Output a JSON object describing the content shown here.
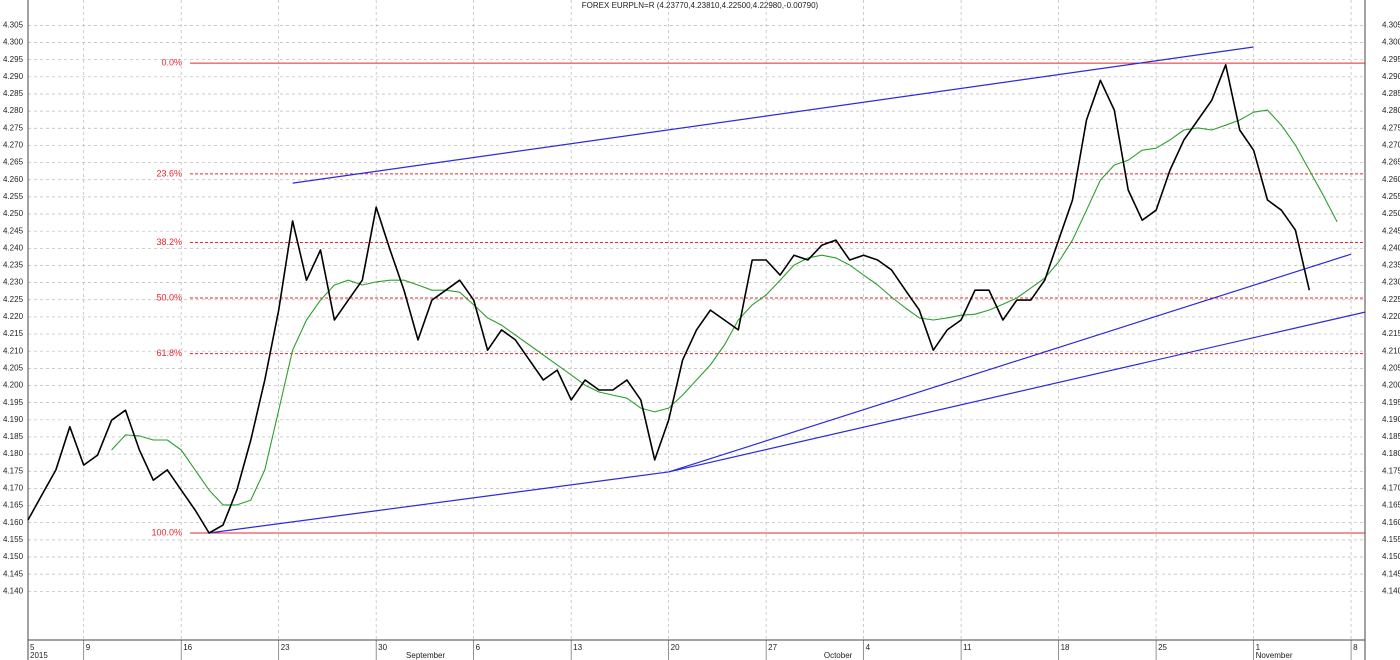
{
  "chart_data": {
    "type": "line",
    "title": "FOREX EURPLN=R (4.23770,4.23810,4.22500,4.22980,-0.00790)",
    "x": [
      "2015-08-05",
      "2015-08-06",
      "2015-08-07",
      "2015-08-08",
      "2015-08-09",
      "2015-08-10",
      "2015-08-11",
      "2015-08-12",
      "2015-08-13",
      "2015-08-14",
      "2015-08-15",
      "2015-08-16",
      "2015-08-17",
      "2015-08-18",
      "2015-08-19",
      "2015-08-20",
      "2015-08-21",
      "2015-08-22",
      "2015-08-23",
      "2015-08-24",
      "2015-08-25",
      "2015-08-26",
      "2015-08-27",
      "2015-08-28",
      "2015-08-29",
      "2015-08-30",
      "2015-08-31",
      "2015-09-01",
      "2015-09-02",
      "2015-09-03",
      "2015-09-04",
      "2015-09-05",
      "2015-09-06",
      "2015-09-07",
      "2015-09-08",
      "2015-09-09",
      "2015-09-10",
      "2015-09-11",
      "2015-09-12",
      "2015-09-13",
      "2015-09-14",
      "2015-09-15",
      "2015-09-16",
      "2015-09-17",
      "2015-09-18",
      "2015-09-19",
      "2015-09-20",
      "2015-09-21",
      "2015-09-22",
      "2015-09-23",
      "2015-09-24",
      "2015-09-25",
      "2015-09-26",
      "2015-09-27",
      "2015-09-28",
      "2015-09-29",
      "2015-09-30",
      "2015-10-01",
      "2015-10-02",
      "2015-10-03",
      "2015-10-04",
      "2015-10-05",
      "2015-10-06",
      "2015-10-07",
      "2015-10-08",
      "2015-10-09",
      "2015-10-10",
      "2015-10-11",
      "2015-10-12",
      "2015-10-13",
      "2015-10-14",
      "2015-10-15",
      "2015-10-16",
      "2015-10-17",
      "2015-10-18",
      "2015-10-19",
      "2015-10-20",
      "2015-10-21",
      "2015-10-22",
      "2015-10-23",
      "2015-10-24",
      "2015-10-25",
      "2015-10-26",
      "2015-10-27",
      "2015-10-28",
      "2015-10-29",
      "2015-10-30",
      "2015-10-31",
      "2015-11-01",
      "2015-11-02",
      "2015-11-03",
      "2015-11-04",
      "2015-11-05",
      "2015-11-06",
      "2015-11-07"
    ],
    "series": [
      {
        "color": "#000000",
        "values": [
          4.1608,
          4.1681,
          4.1754,
          4.188,
          4.1768,
          4.1797,
          4.1899,
          4.1928,
          4.1812,
          4.1724,
          4.1754,
          4.1695,
          4.1637,
          4.157,
          4.1593,
          4.1695,
          4.1841,
          4.2016,
          4.222,
          4.248,
          4.2307,
          4.2395,
          4.2191,
          4.2249,
          4.2307,
          4.252,
          4.2395,
          4.2278,
          4.2133,
          4.2249,
          4.2278,
          4.2307,
          4.2249,
          4.2103,
          4.2162,
          4.2133,
          4.2074,
          4.2016,
          4.2045,
          4.1958,
          4.2016,
          4.1987,
          4.1987,
          4.2016,
          4.1958,
          4.1783,
          4.1899,
          4.2074,
          4.2162,
          4.222,
          4.2191,
          4.2162,
          4.2366,
          4.2366,
          4.2322,
          4.238,
          4.2366,
          4.2409,
          4.2424,
          4.2366,
          4.238,
          4.2366,
          4.2337,
          4.2278,
          4.222,
          4.2103,
          4.2162,
          4.2191,
          4.2278,
          4.2278,
          4.2191,
          4.2249,
          4.2249,
          4.2307,
          4.2424,
          4.2541,
          4.2774,
          4.289,
          4.2803,
          4.257,
          4.2482,
          4.2511,
          4.2628,
          4.2716,
          4.2774,
          4.2832,
          4.2935,
          4.2745,
          4.2686,
          4.2541,
          4.2511,
          4.2453,
          4.2278,
          null,
          null
        ]
      },
      {
        "color": "#2ca02c",
        "values": [
          null,
          null,
          null,
          null,
          null,
          null,
          4.1812,
          4.1856,
          4.1853,
          4.1841,
          4.1841,
          4.1812,
          4.1754,
          4.1695,
          4.1652,
          4.1652,
          4.1666,
          4.1754,
          4.1928,
          4.2103,
          4.2191,
          4.2249,
          4.2293,
          4.2307,
          4.2293,
          4.2302,
          4.2307,
          4.2307,
          4.2293,
          4.2278,
          4.2278,
          4.2272,
          4.2235,
          4.2197,
          4.2176,
          4.2147,
          4.2118,
          4.2089,
          4.206,
          4.2031,
          4.2001,
          4.1981,
          4.1972,
          4.1963,
          4.1934,
          4.1923,
          4.1934,
          4.1972,
          4.2016,
          4.206,
          4.2118,
          4.2191,
          4.2235,
          4.2264,
          4.2307,
          4.2351,
          4.2372,
          4.238,
          4.2372,
          4.2351,
          4.2322,
          4.2293,
          4.2258,
          4.2226,
          4.2197,
          4.2191,
          4.2197,
          4.2205,
          4.2208,
          4.222,
          4.2237,
          4.2255,
          4.2284,
          4.2313,
          4.236,
          4.2424,
          4.2511,
          4.2599,
          4.2643,
          4.2657,
          4.2686,
          4.2692,
          4.2716,
          4.2745,
          4.2751,
          4.2745,
          4.2759,
          4.2774,
          4.2797,
          4.2803,
          4.2759,
          4.2701,
          4.2628,
          4.2555,
          4.2477
        ]
      }
    ],
    "trendlines": {
      "color": "#2b2bdc",
      "lines": [
        {
          "x": [
            "2015-08-24",
            "2015-11-01"
          ],
          "values": [
            4.259,
            4.2987
          ]
        },
        {
          "x": [
            "2015-08-18",
            "2015-09-20"
          ],
          "values": [
            4.157,
            4.1748
          ]
        },
        {
          "x": [
            "2015-09-20",
            "2015-11-08"
          ],
          "values": [
            4.1748,
            4.2383
          ]
        },
        {
          "x": [
            "2015-09-20",
            "2015-11-09"
          ],
          "values": [
            4.1748,
            4.2214
          ]
        }
      ]
    },
    "levels": {
      "color": "#e8262d",
      "items": [
        {
          "name": "0.0%",
          "value": 4.294,
          "style": "solid"
        },
        {
          "name": "23.6%",
          "value": 4.2617,
          "style": "dashed"
        },
        {
          "name": "38.2%",
          "value": 4.2417,
          "style": "dashed"
        },
        {
          "name": "50.0%",
          "value": 4.2255,
          "style": "dashed"
        },
        {
          "name": "61.8%",
          "value": 4.2093,
          "style": "dashed"
        },
        {
          "name": "100.0%",
          "value": 4.157,
          "style": "solid"
        }
      ]
    },
    "xlim": [
      "2015-08-05",
      "2015-11-09"
    ],
    "xticks": [
      {
        "value": "2015-08-05",
        "label": "5"
      },
      {
        "value": "2015-08-09",
        "label": "9"
      },
      {
        "value": "2015-08-16",
        "label": "16"
      },
      {
        "value": "2015-08-23",
        "label": "23"
      },
      {
        "value": "2015-08-30",
        "label": "30"
      },
      {
        "value": "2015-09-06",
        "label": "6"
      },
      {
        "value": "2015-09-13",
        "label": "13"
      },
      {
        "value": "2015-09-20",
        "label": "20"
      },
      {
        "value": "2015-09-27",
        "label": "27"
      },
      {
        "value": "2015-10-04",
        "label": "4"
      },
      {
        "value": "2015-10-11",
        "label": "11"
      },
      {
        "value": "2015-10-18",
        "label": "18"
      },
      {
        "value": "2015-10-25",
        "label": "25"
      },
      {
        "value": "2015-11-01",
        "label": "1"
      },
      {
        "value": "2015-11-08",
        "label": "8"
      }
    ],
    "xlabels2": [
      {
        "value": "2015-08-05",
        "label": "2015"
      },
      {
        "value": "2015-09-01",
        "label": "September"
      },
      {
        "value": "2015-10-01",
        "label": "October"
      },
      {
        "value": "2015-11-01",
        "label": "November"
      }
    ],
    "ylim": [
      4.1258,
      4.3124
    ],
    "yticks": [
      4.305,
      {
        "value": 4.3,
        "label": "4.300"
      },
      4.295,
      {
        "value": 4.29,
        "label": "4.290"
      },
      4.285,
      {
        "value": 4.28,
        "label": "4.280"
      },
      4.275,
      {
        "value": 4.27,
        "label": "4.270"
      },
      4.265,
      {
        "value": 4.26,
        "label": "4.260"
      },
      4.255,
      {
        "value": 4.25,
        "label": "4.250"
      },
      4.245,
      {
        "value": 4.24,
        "label": "4.240"
      },
      4.235,
      {
        "value": 4.23,
        "label": "4.230"
      },
      4.225,
      {
        "value": 4.22,
        "label": "4.220"
      },
      4.215,
      {
        "value": 4.21,
        "label": "4.210"
      },
      4.205,
      {
        "value": 4.2,
        "label": "4.200"
      },
      4.195,
      {
        "value": 4.19,
        "label": "4.190"
      },
      4.185,
      {
        "value": 4.18,
        "label": "4.180"
      },
      4.175,
      {
        "value": 4.17,
        "label": "4.170"
      },
      4.165,
      {
        "value": 4.16,
        "label": "4.160"
      },
      4.155,
      {
        "value": 4.15,
        "label": "4.150"
      },
      4.145,
      {
        "value": 4.14,
        "label": "4.140"
      }
    ],
    "grid": true
  }
}
